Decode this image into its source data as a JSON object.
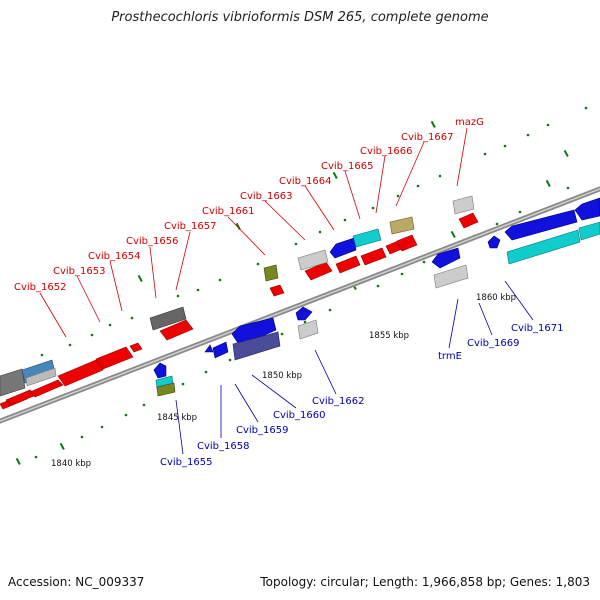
{
  "title": "Prosthecochloris vibrioformis DSM 265, complete genome",
  "footer": {
    "accession": "Accession: NC_009337",
    "topology": "Topology: circular; Length: 1,966,858 bp; Genes: 1,803"
  },
  "colors": {
    "forward_gene": "#ee0000",
    "reverse_gene": "#1111dd",
    "label_forward": "#cc0000",
    "label_reverse": "#0000aa",
    "backbone": "#8a8a8a",
    "tick_green": "#117711"
  },
  "scale_labels": [
    "1840 kbp",
    "1845 kbp",
    "1850 kbp",
    "1855 kbp",
    "1860 kbp"
  ],
  "genes_forward": [
    "Cvib_1652",
    "Cvib_1653",
    "Cvib_1654",
    "Cvib_1656",
    "Cvib_1657",
    "Cvib_1661",
    "Cvib_1663",
    "Cvib_1664",
    "Cvib_1665",
    "Cvib_1666",
    "Cvib_1667",
    "mazG"
  ],
  "genes_reverse": [
    "Cvib_1655",
    "Cvib_1658",
    "Cvib_1659",
    "Cvib_1660",
    "Cvib_1662",
    "trmE",
    "Cvib_1669",
    "Cvib_1671"
  ]
}
